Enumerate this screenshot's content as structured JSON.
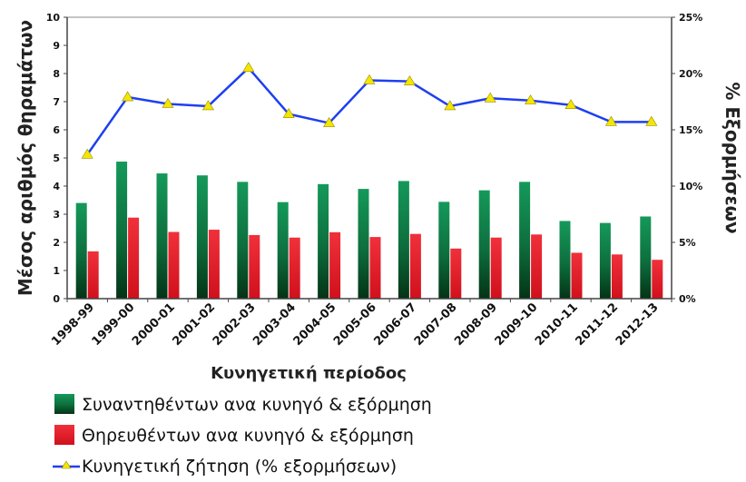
{
  "chart_data": {
    "type": "bar",
    "xlabel": "Κυνηγετική περίοδος",
    "ylabel": "Μέσος αριθμός θηραμάτων",
    "y2label": "% Εξορμήσεων",
    "ylim": [
      0,
      10
    ],
    "y2lim": [
      0,
      25
    ],
    "yticks": [
      "0",
      "1",
      "2",
      "3",
      "4",
      "5",
      "6",
      "7",
      "8",
      "9",
      "10"
    ],
    "y2ticks": [
      "0%",
      "5%",
      "10%",
      "15%",
      "20%",
      "25%"
    ],
    "grid": false,
    "legend_position": "bottom-left",
    "categories": [
      "1998-99",
      "1999-00",
      "2000-01",
      "2001-02",
      "2002-03",
      "2003-04",
      "2004-05",
      "2005-06",
      "2006-07",
      "2007-08",
      "2008-09",
      "2009-10",
      "2010-11",
      "2011-12",
      "2012-13"
    ],
    "series": [
      {
        "name": "Συναντηθέντων ανα κυνηγό & εξόρμηση",
        "type": "bar",
        "axis": "left",
        "color": "#0f7a45",
        "values": [
          3.4,
          4.87,
          4.45,
          4.38,
          4.15,
          3.43,
          4.07,
          3.9,
          4.18,
          3.44,
          3.85,
          4.15,
          2.76,
          2.69,
          2.92
        ]
      },
      {
        "name": "Θηρευθέντων ανα κυνηγό & εξόρμηση",
        "type": "bar",
        "axis": "left",
        "color": "#e8202a",
        "values": [
          1.68,
          2.88,
          2.37,
          2.45,
          2.26,
          2.17,
          2.36,
          2.19,
          2.3,
          1.78,
          2.17,
          2.28,
          1.63,
          1.57,
          1.38
        ]
      },
      {
        "name": "Κυνηγετική ζήτηση (% εξορμήσεων)",
        "type": "line",
        "axis": "right",
        "color": "#1f3ff0",
        "marker_color": "#f5e600",
        "values": [
          12.8,
          17.9,
          17.3,
          17.1,
          20.5,
          16.4,
          15.6,
          19.4,
          19.3,
          17.1,
          17.8,
          17.6,
          17.2,
          15.7,
          15.7
        ]
      }
    ]
  }
}
